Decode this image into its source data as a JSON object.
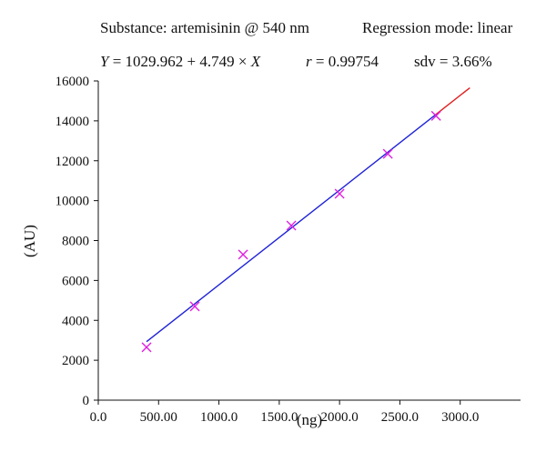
{
  "header": {
    "substance_label": "Substance: artemisinin @ 540 nm",
    "regression_label": "Regression mode: linear",
    "equation_y": "Y",
    "equation_body": " = 1029.962 + 4.749 × ",
    "equation_x": "X",
    "r_symbol": "r",
    "r_value": " = 0.99754",
    "sdv_label": "sdv = 3.66%"
  },
  "chart_data": {
    "type": "scatter",
    "xlabel": "(ng)",
    "ylabel": "(AU)",
    "xlim": [
      0,
      3500
    ],
    "ylim": [
      0,
      16000
    ],
    "x_ticks": [
      0,
      500,
      1000,
      1500,
      2000,
      2500,
      3000
    ],
    "x_tick_labels": [
      "0.0",
      "500.00",
      "1000.0",
      "1500.0",
      "2000.0",
      "2500.0",
      "3000.0"
    ],
    "y_ticks": [
      0,
      2000,
      4000,
      6000,
      8000,
      10000,
      12000,
      14000,
      16000
    ],
    "y_tick_labels": [
      "0",
      "2000",
      "4000",
      "6000",
      "8000",
      "10000",
      "12000",
      "14000",
      "16000"
    ],
    "grid": false,
    "points": {
      "marker": "x",
      "color": "#e020e0",
      "x": [
        400,
        800,
        1200,
        1600,
        2000,
        2400,
        2800
      ],
      "y": [
        2650,
        4700,
        7300,
        8750,
        10350,
        12350,
        14250
      ]
    },
    "regression": {
      "intercept": 1029.962,
      "slope": 4.749,
      "x_start": 400,
      "x_end": 2800,
      "x_extend": 3080,
      "color": "#1e22d6",
      "extension_color": "#e02020"
    }
  }
}
